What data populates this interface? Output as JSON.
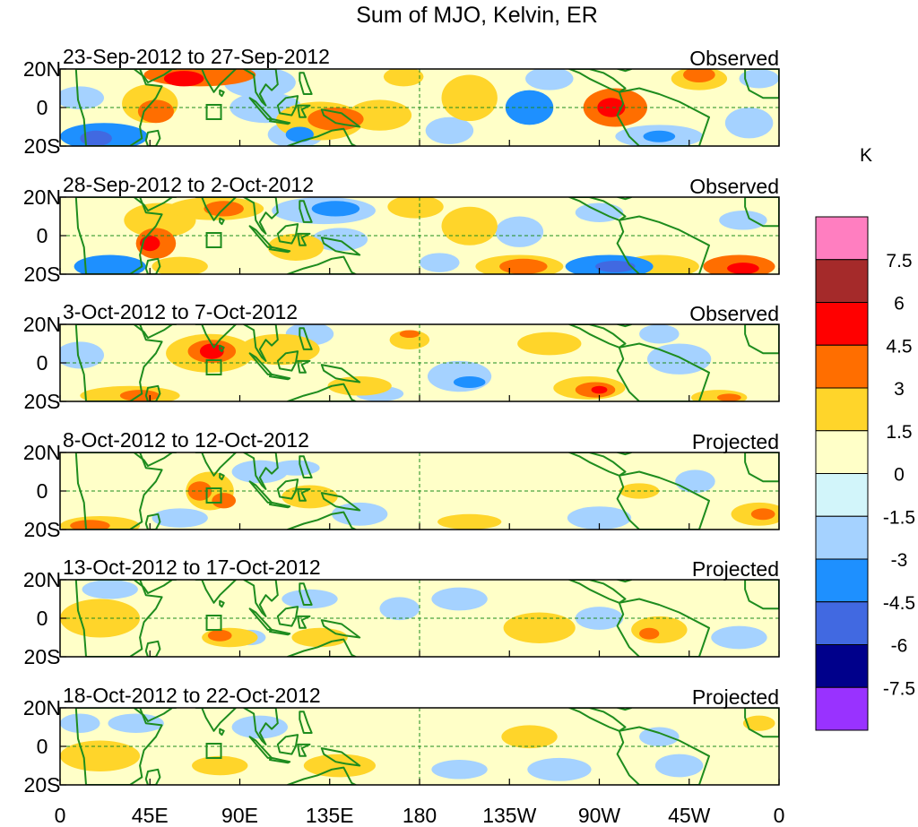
{
  "title": "Sum of MJO, Kelvin, ER",
  "panels": [
    {
      "date_range": "23-Sep-2012 to 27-Sep-2012",
      "status": "Observed"
    },
    {
      "date_range": "28-Sep-2012 to 2-Oct-2012",
      "status": "Observed"
    },
    {
      "date_range": "3-Oct-2012 to 7-Oct-2012",
      "status": "Observed"
    },
    {
      "date_range": "8-Oct-2012 to 12-Oct-2012",
      "status": "Projected"
    },
    {
      "date_range": "13-Oct-2012 to 17-Oct-2012",
      "status": "Projected"
    },
    {
      "date_range": "18-Oct-2012 to 22-Oct-2012",
      "status": "Projected"
    }
  ],
  "lat_labels": [
    "20N",
    "0",
    "20S"
  ],
  "lon_labels": [
    "0",
    "45E",
    "90E",
    "135E",
    "180",
    "135W",
    "90W",
    "45W",
    "0"
  ],
  "colorbar": {
    "unit": "K",
    "labels": [
      "7.5",
      "6",
      "4.5",
      "3",
      "1.5",
      "0",
      "-1.5",
      "-3",
      "-4.5",
      "-6",
      "-7.5"
    ],
    "colors": [
      "#ff7ec0",
      "#a52a2a",
      "#ff0000",
      "#ff6e00",
      "#ffd52a",
      "#ffffc8",
      "#d2f5fa",
      "#a5d2ff",
      "#1e90ff",
      "#4169e1",
      "#00008b",
      "#9932ff"
    ]
  },
  "colors": {
    "coast": "#1e8c1e",
    "grid": "#1e8c1e"
  }
}
